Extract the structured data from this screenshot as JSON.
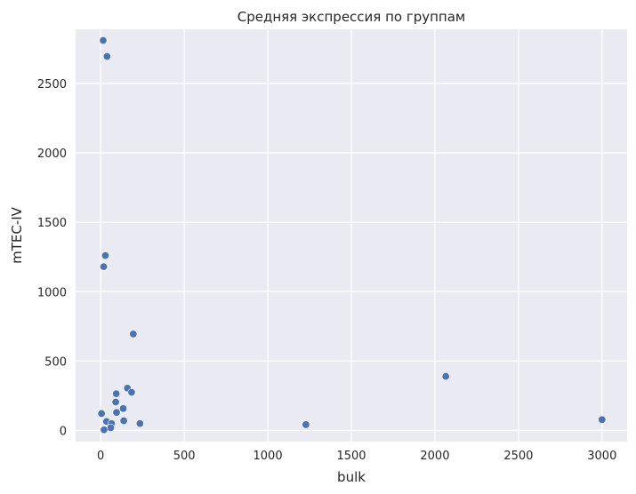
{
  "chart_data": {
    "type": "scatter",
    "title": "Средняя экспрессия по группам",
    "xlabel": "bulk",
    "ylabel": "mTEC-IV",
    "xlim": [
      -150,
      3150
    ],
    "ylim": [
      -80,
      2890
    ],
    "xticks": [
      0,
      500,
      1000,
      1500,
      2000,
      2500,
      3000
    ],
    "yticks": [
      0,
      500,
      1000,
      1500,
      2000,
      2500
    ],
    "grid": true,
    "point_color": "#4c72b0",
    "background_color": "#eaeaf2",
    "points": [
      {
        "x": 15,
        "y": 2810
      },
      {
        "x": 38,
        "y": 2695
      },
      {
        "x": 28,
        "y": 1260
      },
      {
        "x": 18,
        "y": 1180
      },
      {
        "x": 195,
        "y": 695
      },
      {
        "x": 2065,
        "y": 390
      },
      {
        "x": 160,
        "y": 305
      },
      {
        "x": 185,
        "y": 275
      },
      {
        "x": 93,
        "y": 265
      },
      {
        "x": 90,
        "y": 205
      },
      {
        "x": 135,
        "y": 158
      },
      {
        "x": 95,
        "y": 130
      },
      {
        "x": 5,
        "y": 122
      },
      {
        "x": 3000,
        "y": 78
      },
      {
        "x": 138,
        "y": 70
      },
      {
        "x": 35,
        "y": 65
      },
      {
        "x": 235,
        "y": 50
      },
      {
        "x": 65,
        "y": 50
      },
      {
        "x": 1228,
        "y": 42
      },
      {
        "x": 60,
        "y": 20
      },
      {
        "x": 20,
        "y": 5
      }
    ]
  }
}
